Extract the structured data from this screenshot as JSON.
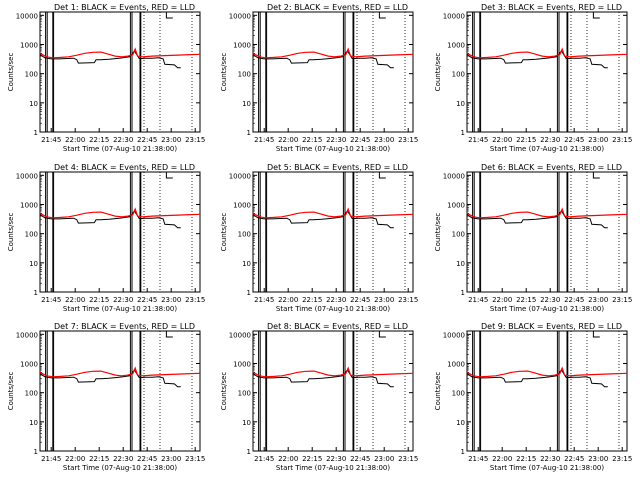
{
  "colors": {
    "events": "#000000",
    "lld": "#ff0000",
    "axes": "#000000",
    "background": "#ffffff"
  },
  "common": {
    "ylabel": "Counts/sec",
    "xlabel": "Start Time (07-Aug-10 21:38:00)",
    "xticks": [
      "21:45",
      "22:00",
      "22:15",
      "22:30",
      "22:45",
      "23:00",
      "23:15"
    ],
    "yticks": [
      "1",
      "10",
      "100",
      "1000",
      "10000"
    ],
    "y_scale": "log",
    "ylim": [
      1,
      13000
    ],
    "xlim_minutes_after_start": [
      0,
      100
    ],
    "dotted_verticals_minutes": [
      65,
      75,
      95
    ]
  },
  "chart_data": [
    {
      "type": "line",
      "title": "Det 1: BLACK = Events, RED = LLD",
      "series": [
        {
          "name": "Events",
          "color": "#000000"
        },
        {
          "name": "LLD",
          "color": "#ff0000"
        }
      ]
    },
    {
      "type": "line",
      "title": "Det 2: BLACK = Events, RED = LLD",
      "series": [
        {
          "name": "Events",
          "color": "#000000"
        },
        {
          "name": "LLD",
          "color": "#ff0000"
        }
      ]
    },
    {
      "type": "line",
      "title": "Det 3: BLACK = Events, RED = LLD",
      "series": [
        {
          "name": "Events",
          "color": "#000000"
        },
        {
          "name": "LLD",
          "color": "#ff0000"
        }
      ]
    },
    {
      "type": "line",
      "title": "Det 4: BLACK = Events, RED = LLD",
      "series": [
        {
          "name": "Events",
          "color": "#000000"
        },
        {
          "name": "LLD",
          "color": "#ff0000"
        }
      ]
    },
    {
      "type": "line",
      "title": "Det 5: BLACK = Events, RED = LLD",
      "series": [
        {
          "name": "Events",
          "color": "#000000"
        },
        {
          "name": "LLD",
          "color": "#ff0000"
        }
      ]
    },
    {
      "type": "line",
      "title": "Det 6: BLACK = Events, RED = LLD",
      "series": [
        {
          "name": "Events",
          "color": "#000000"
        },
        {
          "name": "LLD",
          "color": "#ff0000"
        }
      ]
    },
    {
      "type": "line",
      "title": "Det 7: BLACK = Events, RED = LLD",
      "series": [
        {
          "name": "Events",
          "color": "#000000"
        },
        {
          "name": "LLD",
          "color": "#ff0000"
        }
      ]
    },
    {
      "type": "line",
      "title": "Det 8: BLACK = Events, RED = LLD",
      "series": [
        {
          "name": "Events",
          "color": "#000000"
        },
        {
          "name": "LLD",
          "color": "#ff0000"
        }
      ]
    },
    {
      "type": "line",
      "title": "Det 9: BLACK = Events, RED = LLD",
      "series": [
        {
          "name": "Events",
          "color": "#000000"
        },
        {
          "name": "LLD",
          "color": "#ff0000"
        }
      ]
    }
  ]
}
